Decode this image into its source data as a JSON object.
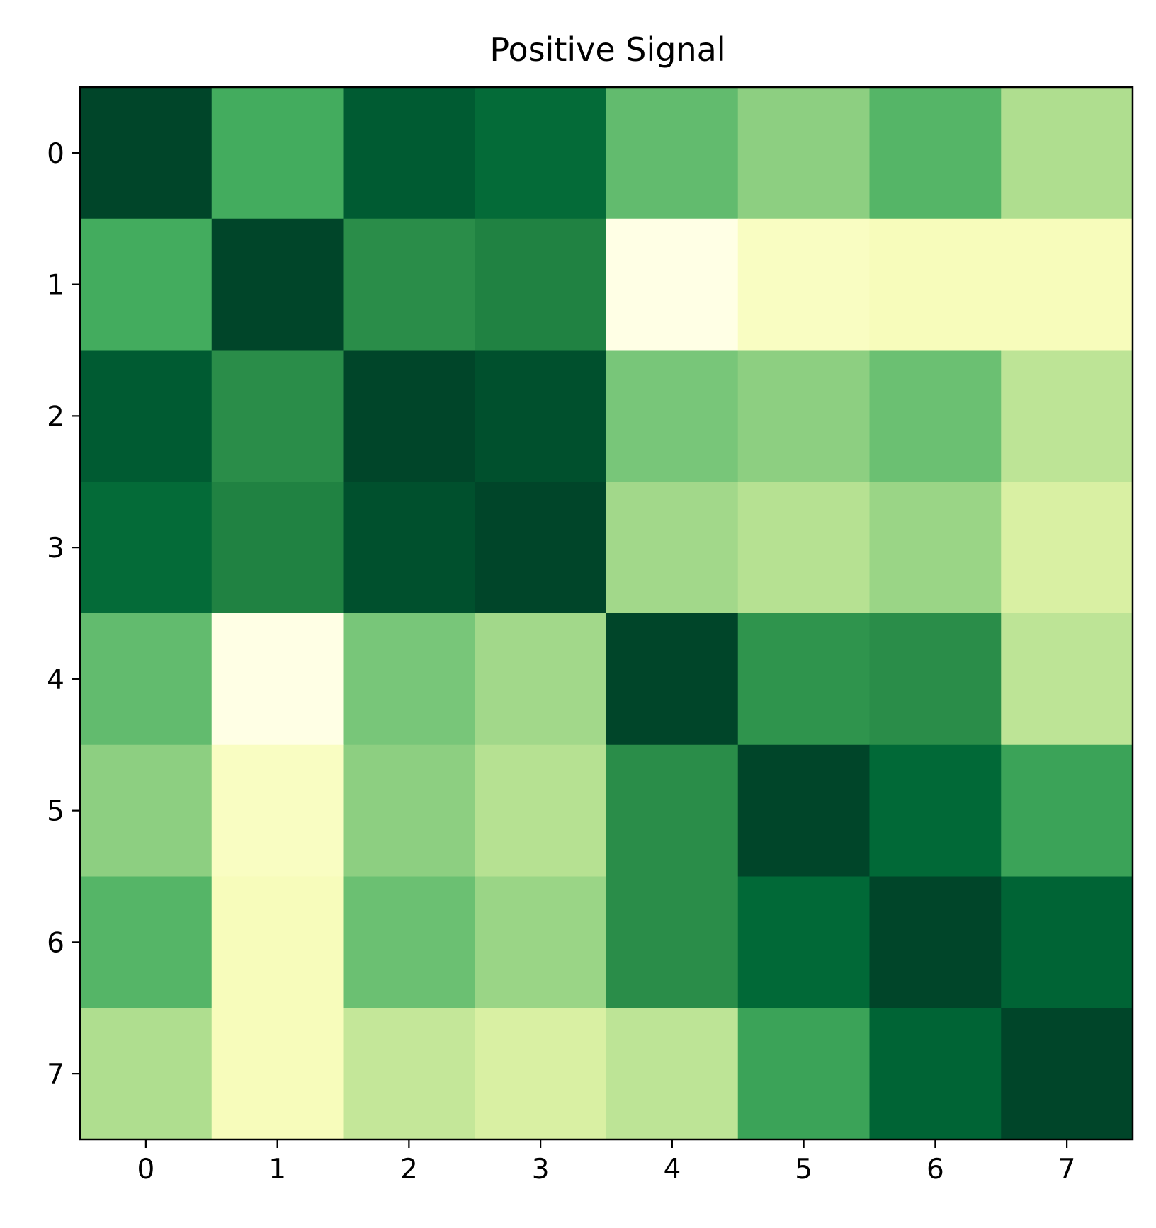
{
  "chart_data": {
    "type": "heatmap",
    "title": "Positive Signal",
    "xlabel": "",
    "ylabel": "",
    "x_ticks": [
      "0",
      "1",
      "2",
      "3",
      "4",
      "5",
      "6",
      "7"
    ],
    "y_ticks": [
      "0",
      "1",
      "2",
      "3",
      "4",
      "5",
      "6",
      "7"
    ],
    "colormap": "YlGn",
    "value_range": [
      0,
      1
    ],
    "colorbar": false,
    "grid": false,
    "values": [
      [
        1.0,
        0.62,
        0.92,
        0.86,
        0.55,
        0.45,
        0.58,
        0.37
      ],
      [
        0.62,
        1.0,
        0.72,
        0.76,
        0.0,
        0.1,
        0.12,
        0.12
      ],
      [
        0.92,
        0.72,
        1.0,
        0.96,
        0.5,
        0.45,
        0.53,
        0.33
      ],
      [
        0.86,
        0.76,
        0.96,
        1.0,
        0.4,
        0.35,
        0.42,
        0.25
      ],
      [
        0.55,
        0.0,
        0.5,
        0.4,
        1.0,
        0.7,
        0.72,
        0.33
      ],
      [
        0.45,
        0.1,
        0.45,
        0.35,
        0.72,
        1.0,
        0.87,
        0.65
      ],
      [
        0.58,
        0.12,
        0.53,
        0.42,
        0.72,
        0.87,
        1.0,
        0.89
      ],
      [
        0.37,
        0.12,
        0.31,
        0.25,
        0.33,
        0.65,
        0.89,
        1.0
      ]
    ]
  }
}
